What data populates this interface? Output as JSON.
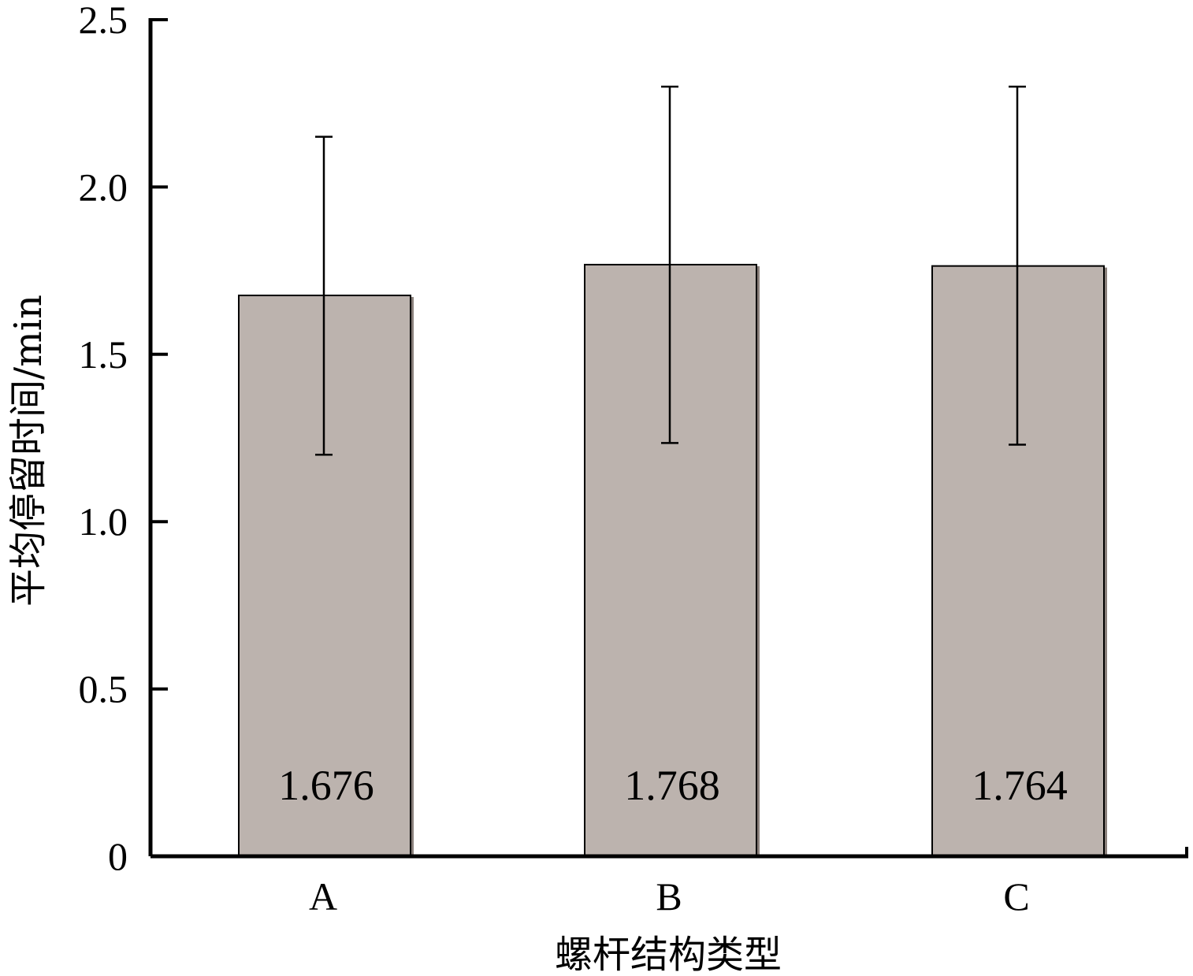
{
  "chart_data": {
    "type": "bar",
    "categories": [
      "A",
      "B",
      "C"
    ],
    "values": [
      1.676,
      1.768,
      1.764
    ],
    "value_labels": [
      "1.676",
      "1.768",
      "1.764"
    ],
    "error_bars": [
      {
        "low": 1.2,
        "high": 2.15
      },
      {
        "low": 1.235,
        "high": 2.3
      },
      {
        "low": 1.23,
        "high": 2.3
      }
    ],
    "xlabel": "螺杆结构类型",
    "ylabel": "平均停留时间/min",
    "ylim": [
      0,
      2.5
    ],
    "yticks": [
      0,
      0.5,
      1.0,
      1.5,
      2.0,
      2.5
    ],
    "ytick_labels": [
      "0",
      "0.5",
      "1.0",
      "1.5",
      "2.0",
      "2.5"
    ],
    "grid": false,
    "bar_color": "#bcb3ae"
  }
}
